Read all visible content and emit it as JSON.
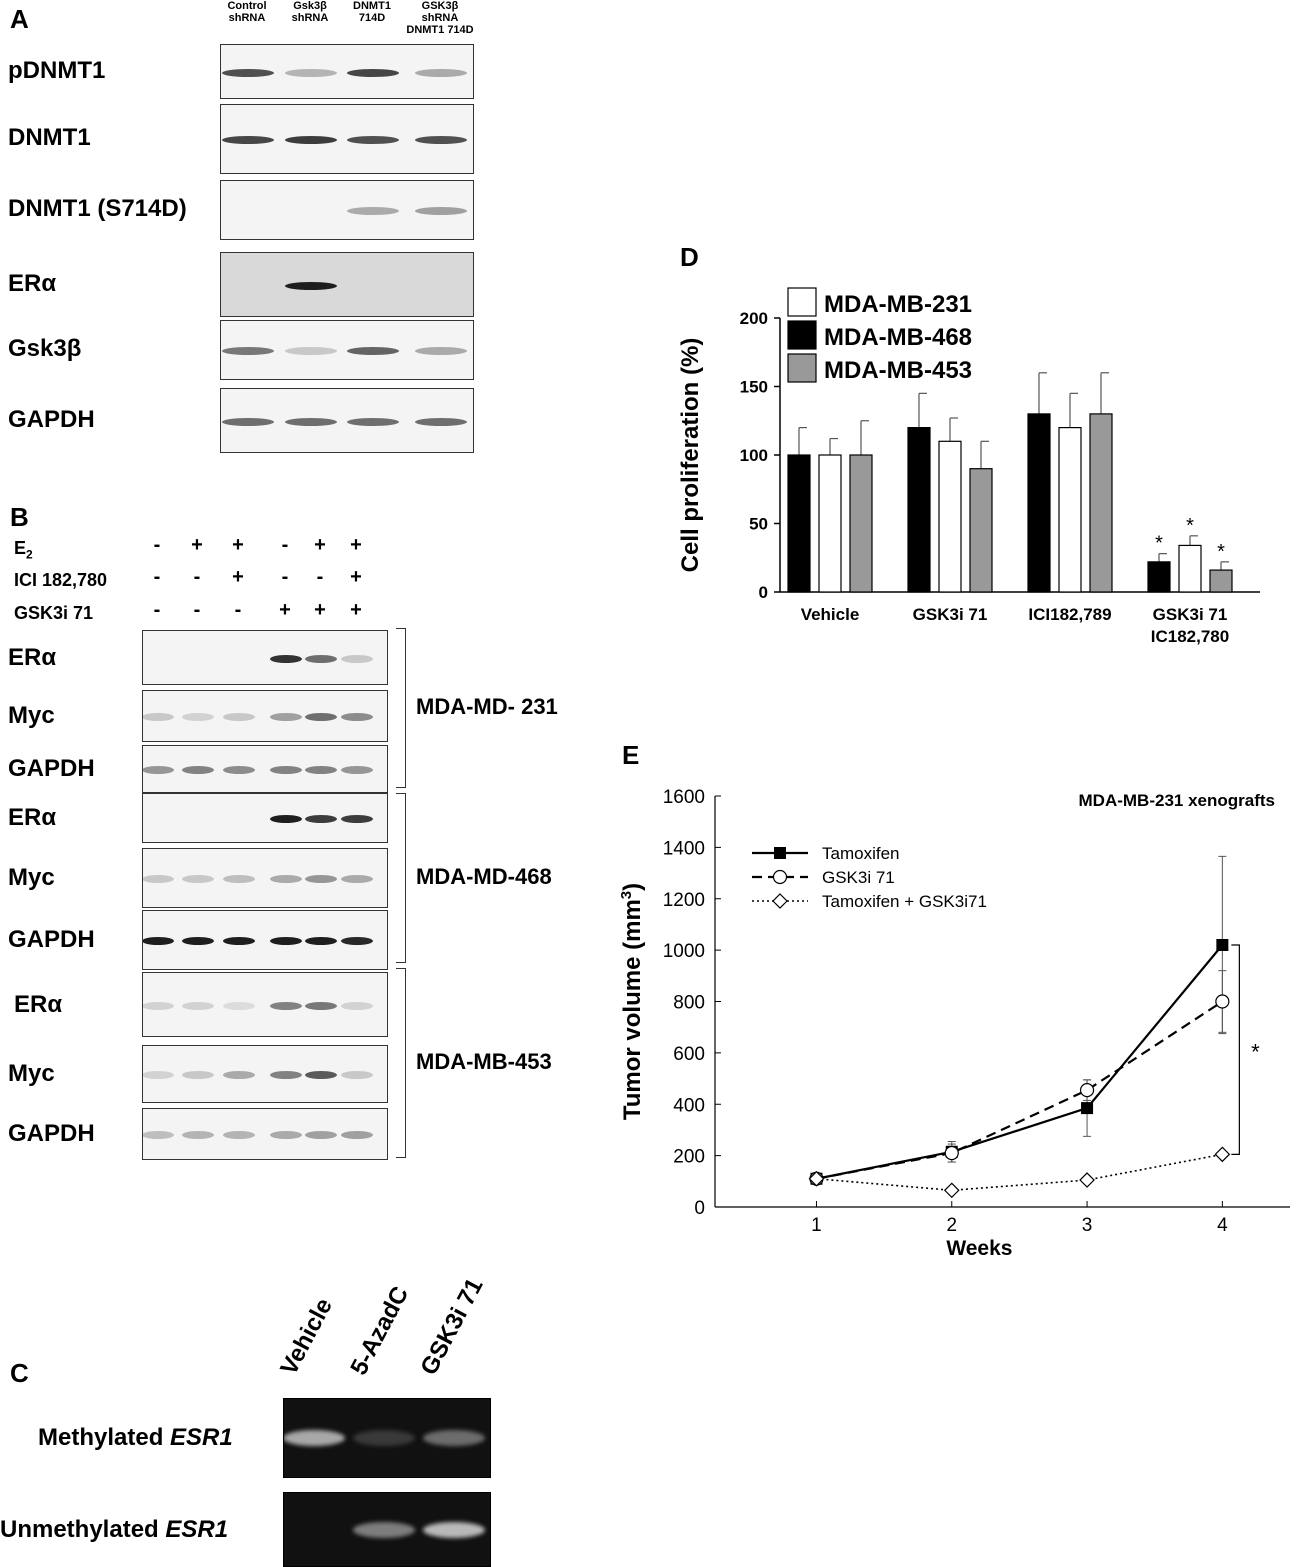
{
  "panelA": {
    "letter": "A",
    "columns": [
      {
        "line1": "Control",
        "line2": "shRNA"
      },
      {
        "line1": "Gsk3β",
        "line2": "shRNA"
      },
      {
        "line1": "DNMT1",
        "line2": "714D"
      },
      {
        "line1": "GSK3β shRNA",
        "line2": "DNMT1 714D"
      }
    ],
    "rows": [
      "pDNMT1",
      "DNMT1",
      "DNMT1 (S714D)",
      "ERα",
      "Gsk3β",
      "GAPDH"
    ],
    "band_intensity": [
      [
        0.75,
        0.25,
        0.8,
        0.3
      ],
      [
        0.8,
        0.85,
        0.75,
        0.75
      ],
      [
        0.0,
        0.0,
        0.3,
        0.35
      ],
      [
        0.0,
        1.0,
        0.0,
        0.0
      ],
      [
        0.55,
        0.15,
        0.65,
        0.3
      ],
      [
        0.6,
        0.6,
        0.6,
        0.6
      ]
    ]
  },
  "panelB": {
    "letter": "B",
    "conditions": [
      {
        "label": "E2",
        "signs": [
          "-",
          "+",
          "+",
          "-",
          "+",
          "+"
        ]
      },
      {
        "label": "ICI 182,780",
        "signs": [
          "-",
          "-",
          "+",
          "-",
          "-",
          "+"
        ]
      },
      {
        "label": "GSK3i  71",
        "signs": [
          "-",
          "-",
          "-",
          "+",
          "+",
          "+"
        ]
      }
    ],
    "groups": [
      {
        "name": "MDA-MD- 231",
        "rows": [
          {
            "label": "ERα",
            "intensity": [
              0,
              0,
              0,
              0.9,
              0.6,
              0.15
            ]
          },
          {
            "label": "Myc",
            "intensity": [
              0.15,
              0.1,
              0.15,
              0.35,
              0.6,
              0.45
            ]
          },
          {
            "label": "GAPDH",
            "intensity": [
              0.4,
              0.5,
              0.45,
              0.5,
              0.5,
              0.4
            ]
          }
        ]
      },
      {
        "name": "MDA-MD-468",
        "rows": [
          {
            "label": "ERα",
            "intensity": [
              0,
              0,
              0,
              1.0,
              0.85,
              0.85
            ]
          },
          {
            "label": "Myc",
            "intensity": [
              0.15,
              0.15,
              0.2,
              0.3,
              0.4,
              0.3
            ]
          },
          {
            "label": "GAPDH",
            "intensity": [
              1.0,
              1.0,
              1.0,
              1.0,
              1.0,
              0.95
            ]
          }
        ]
      },
      {
        "name": "MDA-MB-453",
        "rows": [
          {
            "label": "ERα",
            "intensity": [
              0.1,
              0.1,
              0.05,
              0.5,
              0.55,
              0.1
            ]
          },
          {
            "label": "Myc",
            "intensity": [
              0.1,
              0.15,
              0.3,
              0.5,
              0.7,
              0.15
            ]
          },
          {
            "label": "GAPDH",
            "intensity": [
              0.2,
              0.25,
              0.25,
              0.3,
              0.35,
              0.35
            ]
          }
        ]
      }
    ]
  },
  "panelC": {
    "letter": "C",
    "columns": [
      "Vehicle",
      "5-AzadC",
      "GSK3i 71"
    ],
    "rows": [
      {
        "prefix": "Methylated ",
        "gene": "ESR1",
        "intensity": [
          0.75,
          0.1,
          0.4
        ]
      },
      {
        "prefix": "Unmethylated ",
        "gene": "ESR1",
        "intensity": [
          0.0,
          0.5,
          0.85
        ]
      }
    ]
  },
  "panelD": {
    "letter": "D",
    "chart_data": {
      "type": "bar",
      "ylabel": "Cell proliferation (%)",
      "ylim": [
        0,
        200
      ],
      "yticks": [
        0,
        50,
        100,
        150,
        200
      ],
      "categories": [
        {
          "line1": "Vehicle",
          "line2": ""
        },
        {
          "line1": "GSK3i 71",
          "line2": ""
        },
        {
          "line1": "ICI182,789",
          "line2": ""
        },
        {
          "line1": "GSK3i 71",
          "line2": "IC182,780"
        }
      ],
      "series": [
        {
          "name": "MDA-MB-468",
          "color": "#000000",
          "values": [
            100,
            120,
            130,
            22
          ],
          "errors": [
            20,
            25,
            30,
            6
          ]
        },
        {
          "name": "MDA-MB-231",
          "color": "#ffffff",
          "values": [
            100,
            110,
            120,
            34
          ],
          "errors": [
            12,
            17,
            25,
            7
          ]
        },
        {
          "name": "MDA-MB-453",
          "color": "#999999",
          "values": [
            100,
            90,
            130,
            16
          ],
          "errors": [
            25,
            20,
            30,
            6
          ]
        }
      ],
      "legend_order": [
        "MDA-MB-231",
        "MDA-MB-468",
        "MDA-MB-453"
      ],
      "significance": {
        "category": 3,
        "marker": "*"
      },
      "legend_position": "top-left"
    }
  },
  "panelE": {
    "letter": "E",
    "chart_data": {
      "type": "line",
      "title": "MDA-MB-231 xenografts",
      "xlabel": "Weeks",
      "ylabel_main": "Tumor volume (mm",
      "ylabel_sup": "3",
      "ylabel_end": ")",
      "x": [
        1,
        2,
        3,
        4
      ],
      "xlim": [
        0.25,
        4.5
      ],
      "ylim": [
        0,
        1600
      ],
      "yticks": [
        0,
        200,
        400,
        600,
        800,
        1000,
        1200,
        1400,
        1600
      ],
      "xticks": [
        1,
        2,
        3,
        4
      ],
      "series": [
        {
          "name": "Tamoxifen",
          "values": [
            110,
            215,
            385,
            1020
          ],
          "errors": [
            10,
            40,
            110,
            345
          ],
          "marker": "filled-square",
          "line": "solid"
        },
        {
          "name": "GSK3i 71",
          "values": [
            110,
            210,
            455,
            800
          ],
          "errors": [
            10,
            35,
            40,
            120
          ],
          "marker": "open-circle",
          "line": "dashed"
        },
        {
          "name": "Tamoxifen + GSK3i71",
          "values": [
            110,
            65,
            105,
            205
          ],
          "errors": [
            0,
            0,
            0,
            0
          ],
          "marker": "open-diamond",
          "line": "dotted"
        }
      ],
      "significance_marker": "*",
      "legend_position": "top-left"
    }
  }
}
